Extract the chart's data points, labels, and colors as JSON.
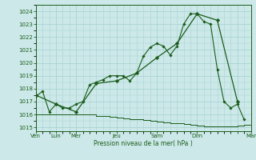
{
  "xlabel": "Pression niveau de la mer( hPa )",
  "bg_color": "#cce8e8",
  "grid_color": "#aad4d4",
  "line_color": "#1a5c1a",
  "ylim": [
    1014.7,
    1024.5
  ],
  "yticks": [
    1015,
    1016,
    1017,
    1018,
    1019,
    1020,
    1021,
    1022,
    1023,
    1024
  ],
  "xlim": [
    0,
    32
  ],
  "xtick_positions": [
    0,
    3,
    6,
    12,
    18,
    24,
    30,
    32
  ],
  "xtick_labels": [
    "Ven",
    "Lun",
    "Mer",
    "Jeu",
    "Sam",
    "Dim",
    "",
    "Mar"
  ],
  "line1_x": [
    0,
    1,
    2,
    3,
    4,
    5,
    6,
    7,
    8,
    9,
    10,
    11,
    12,
    13,
    14,
    15,
    16,
    17,
    18,
    19,
    20,
    21,
    22,
    23,
    24,
    25,
    26,
    27,
    28,
    29,
    30,
    31,
    32
  ],
  "line1_y": [
    1016.0,
    1016.0,
    1016.0,
    1016.0,
    1016.0,
    1016.0,
    1016.0,
    1016.0,
    1016.0,
    1015.9,
    1015.85,
    1015.8,
    1015.75,
    1015.7,
    1015.65,
    1015.6,
    1015.55,
    1015.5,
    1015.45,
    1015.4,
    1015.35,
    1015.3,
    1015.25,
    1015.2,
    1015.15,
    1015.1,
    1015.05,
    1015.05,
    1015.05,
    1015.1,
    1015.15,
    1015.2,
    1015.15
  ],
  "line2_x": [
    0,
    1,
    2,
    3,
    4,
    5,
    6,
    7,
    8,
    9,
    10,
    11,
    12,
    13,
    14,
    15,
    16,
    17,
    18,
    19,
    20,
    21,
    22,
    23,
    24,
    25,
    26,
    27,
    28,
    29,
    30,
    31
  ],
  "line2_y": [
    1017.4,
    1017.8,
    1016.2,
    1016.8,
    1016.5,
    1016.5,
    1016.8,
    1017.0,
    1018.3,
    1018.5,
    1018.7,
    1019.0,
    1019.0,
    1019.0,
    1018.6,
    1019.2,
    1020.5,
    1021.2,
    1021.5,
    1021.3,
    1020.6,
    1021.3,
    1023.0,
    1023.8,
    1023.8,
    1023.2,
    1023.0,
    1019.5,
    1017.0,
    1016.5,
    1016.8,
    1015.6
  ],
  "line3_x": [
    0,
    3,
    6,
    9,
    12,
    15,
    18,
    21,
    24,
    27,
    30
  ],
  "line3_y": [
    1017.5,
    1016.8,
    1016.2,
    1018.4,
    1018.6,
    1019.2,
    1020.4,
    1021.5,
    1023.8,
    1023.3,
    1017.0
  ],
  "minor_xticks": [
    0,
    1,
    2,
    3,
    4,
    5,
    6,
    7,
    8,
    9,
    10,
    11,
    12,
    13,
    14,
    15,
    16,
    17,
    18,
    19,
    20,
    21,
    22,
    23,
    24,
    25,
    26,
    27,
    28,
    29,
    30,
    31,
    32
  ]
}
